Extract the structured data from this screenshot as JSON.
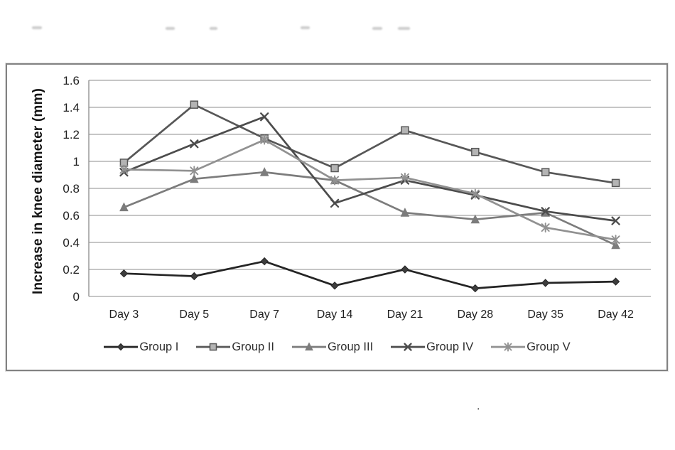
{
  "artifacts": {
    "stray_dot": "."
  },
  "colors": {
    "grid": "#a3a3a3",
    "axis": "#8a8a8a",
    "frame_border": "#828282",
    "text": "#1f1f1f"
  },
  "chart_data": {
    "type": "line",
    "title": "",
    "xlabel": "",
    "ylabel": "Increase in knee diameter (mm)",
    "ylim": [
      0,
      1.6
    ],
    "ytick_step": 0.2,
    "yticks": [
      "0",
      "0.2",
      "0.4",
      "0.6",
      "0.8",
      "1",
      "1.2",
      "1.4",
      "1.6"
    ],
    "grid": "horizontal",
    "legend_position": "bottom",
    "categories": [
      "Day 3",
      "Day 5",
      "Day 7",
      "Day 14",
      "Day 21",
      "Day 28",
      "Day 35",
      "Day 42"
    ],
    "series": [
      {
        "name": "Group I",
        "marker": "diamond",
        "color": "#242424",
        "marker_fill": "#3d3d3d",
        "values": [
          0.17,
          0.15,
          0.26,
          0.08,
          0.2,
          0.06,
          0.1,
          0.11
        ]
      },
      {
        "name": "Group II",
        "marker": "square",
        "color": "#575757",
        "marker_fill": "#b4b4b4",
        "values": [
          0.99,
          1.42,
          1.17,
          0.95,
          1.23,
          1.07,
          0.92,
          0.84
        ]
      },
      {
        "name": "Group III",
        "marker": "triangle",
        "color": "#7c7c7c",
        "marker_fill": "#7c7c7c",
        "values": [
          0.66,
          0.87,
          0.92,
          0.86,
          0.62,
          0.57,
          0.62,
          0.38
        ]
      },
      {
        "name": "Group IV",
        "marker": "x",
        "color": "#4c4c4c",
        "marker_fill": "none",
        "values": [
          0.92,
          1.13,
          1.33,
          0.69,
          0.86,
          0.75,
          0.63,
          0.56
        ]
      },
      {
        "name": "Group V",
        "marker": "asterisk",
        "color": "#919191",
        "marker_fill": "none",
        "values": [
          0.94,
          0.93,
          1.16,
          0.86,
          0.88,
          0.76,
          0.51,
          0.42
        ]
      }
    ]
  }
}
